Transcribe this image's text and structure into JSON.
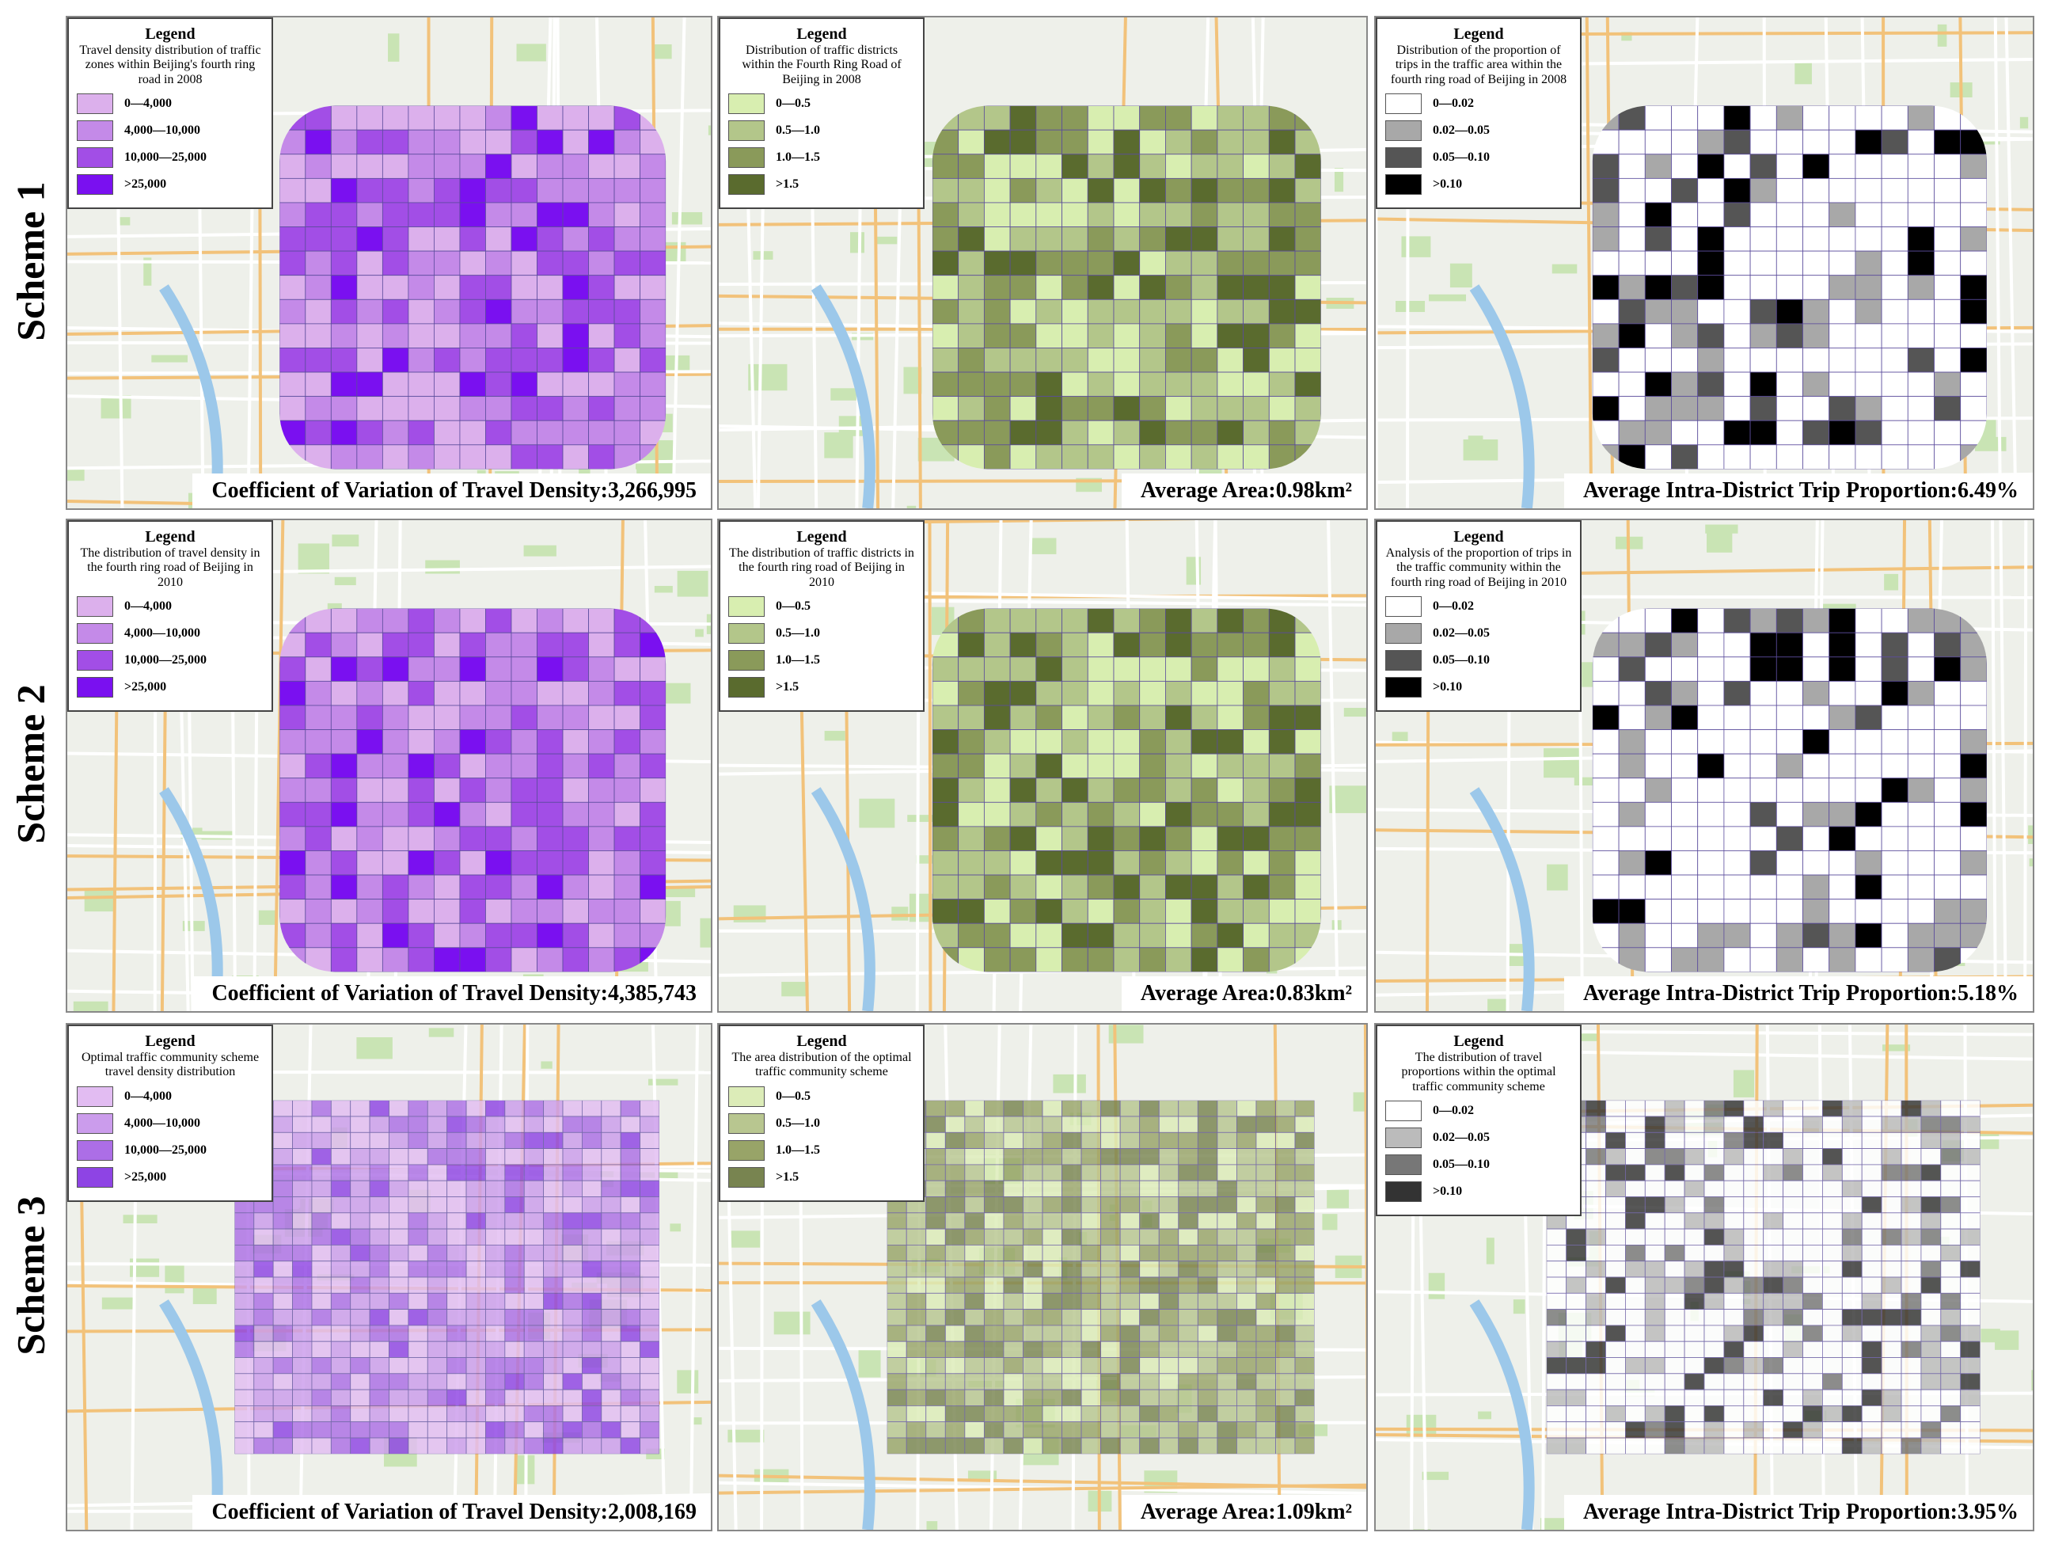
{
  "rows": [
    {
      "label": "Scheme 1",
      "panels": [
        {
          "legend": {
            "heading": "Legend",
            "title": "Travel density distribution of traffic zones within Beijing's fourth ring road in 2008",
            "items": [
              {
                "label": "0—4,000",
                "color": "#dcb0ec"
              },
              {
                "label": "4,000—10,000",
                "color": "#c48ae8"
              },
              {
                "label": "10,000—25,000",
                "color": "#a24ee6"
              },
              {
                "label": ">25,000",
                "color": "#7a10f0"
              }
            ]
          },
          "caption": "Coefficient of Variation of Travel Density:3,266,995"
        },
        {
          "legend": {
            "heading": "Legend",
            "title": "Distribution of traffic districts within the Fourth Ring Road of Beijing in 2008",
            "items": [
              {
                "label": "0—0.5",
                "color": "#d8eeb0"
              },
              {
                "label": "0.5—1.0",
                "color": "#b3c68a"
              },
              {
                "label": "1.0—1.5",
                "color": "#8a9a5a"
              },
              {
                "label": ">1.5",
                "color": "#5a6b2e"
              }
            ]
          },
          "caption": "Average Area:0.98km²"
        },
        {
          "legend": {
            "heading": "Legend",
            "title": "Distribution of the proportion of trips in the traffic area within the fourth ring road of Beijing in 2008",
            "items": [
              {
                "label": "0—0.02",
                "color": "#ffffff"
              },
              {
                "label": "0.02—0.05",
                "color": "#a8a8a8"
              },
              {
                "label": "0.05—0.10",
                "color": "#555555"
              },
              {
                "label": ">0.10",
                "color": "#000000"
              }
            ]
          },
          "caption": "Average Intra-District Trip Proportion:6.49%"
        }
      ]
    },
    {
      "label": "Scheme 2",
      "panels": [
        {
          "legend": {
            "heading": "Legend",
            "title": "The distribution of travel density in the fourth ring road of Beijing in 2010",
            "items": [
              {
                "label": "0—4,000",
                "color": "#dcb0ec"
              },
              {
                "label": "4,000—10,000",
                "color": "#c48ae8"
              },
              {
                "label": "10,000—25,000",
                "color": "#a24ee6"
              },
              {
                "label": ">25,000",
                "color": "#7a10f0"
              }
            ]
          },
          "caption": "Coefficient of Variation of Travel Density:4,385,743"
        },
        {
          "legend": {
            "heading": "Legend",
            "title": "The  distribution of traffic districts in the fourth ring road of Beijing in 2010",
            "items": [
              {
                "label": "0—0.5",
                "color": "#d8eeb0"
              },
              {
                "label": "0.5—1.0",
                "color": "#b3c68a"
              },
              {
                "label": "1.0—1.5",
                "color": "#8a9a5a"
              },
              {
                "label": ">1.5",
                "color": "#5a6b2e"
              }
            ]
          },
          "caption": "Average Area:0.83km²"
        },
        {
          "legend": {
            "heading": "Legend",
            "title": "Analysis of the proportion of trips in the traffic community within the fourth ring road of Beijing in 2010",
            "items": [
              {
                "label": "0—0.02",
                "color": "#ffffff"
              },
              {
                "label": "0.02—0.05",
                "color": "#a8a8a8"
              },
              {
                "label": "0.05—0.10",
                "color": "#555555"
              },
              {
                "label": ">0.10",
                "color": "#000000"
              }
            ]
          },
          "caption": "Average Intra-District Trip Proportion:5.18%"
        }
      ]
    },
    {
      "label": "Scheme 3",
      "panels": [
        {
          "legend": {
            "heading": "Legend",
            "title": "Optimal traffic community scheme travel density distribution",
            "items": [
              {
                "label": "0—4,000",
                "color": "#e2bcf2"
              },
              {
                "label": "4,000—10,000",
                "color": "#cb9cec"
              },
              {
                "label": "10,000—25,000",
                "color": "#ac6ee6"
              },
              {
                "label": ">25,000",
                "color": "#8e44e4"
              }
            ]
          },
          "caption": "Coefficient of Variation of Travel Density:2,008,169"
        },
        {
          "legend": {
            "heading": "Legend",
            "title": "The area distribution of the optimal traffic community scheme",
            "items": [
              {
                "label": "0—0.5",
                "color": "#dcecb8"
              },
              {
                "label": "0.5—1.0",
                "color": "#b8c690"
              },
              {
                "label": "1.0—1.5",
                "color": "#98a468"
              },
              {
                "label": ">1.5",
                "color": "#788450"
              }
            ]
          },
          "caption": "Average Area:1.09km²"
        },
        {
          "legend": {
            "heading": "Legend",
            "title": "The distribution of travel proportions within the optimal traffic community scheme",
            "items": [
              {
                "label": "0—0.02",
                "color": "#ffffff"
              },
              {
                "label": "0.02—0.05",
                "color": "#bbbbbb"
              },
              {
                "label": "0.05—0.10",
                "color": "#777777"
              },
              {
                "label": ">0.10",
                "color": "#333333"
              }
            ]
          },
          "caption": "Average Intra-District Trip Proportion:3.95%"
        }
      ]
    }
  ]
}
